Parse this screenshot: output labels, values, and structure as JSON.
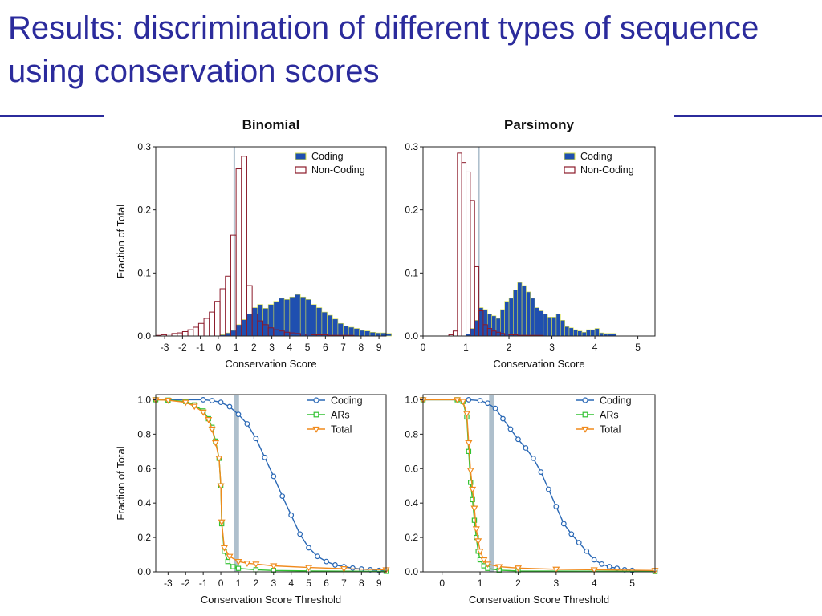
{
  "slide": {
    "title": "Results: discrimination of different types of sequence using conservation scores"
  },
  "colors": {
    "title": "#2b2b9c",
    "coding_fill": "#1f4fb0",
    "coding_edge": "#d8e04a",
    "noncoding_edge": "#8b1a2a",
    "cum_coding": "#2a68b5",
    "cum_ars": "#33c233",
    "cum_total": "#f08a1c",
    "threshold_band": "#aebfcc"
  },
  "chart_data": [
    {
      "type": "bar",
      "title": "Binomial",
      "xlabel": "Conservation Score",
      "ylabel": "Fraction of Total",
      "xlim": [
        -3.5,
        9.4
      ],
      "ylim": [
        0,
        0.3
      ],
      "xticks": [
        -3,
        -2,
        -1,
        0,
        1,
        2,
        3,
        4,
        5,
        6,
        7,
        8,
        9
      ],
      "yticks": [
        0,
        0.1,
        0.2,
        0.3
      ],
      "ytick_labels": [
        "0.0",
        "0.1",
        "0.2",
        "0.3"
      ],
      "threshold": 0.9,
      "bin_start": -3.5,
      "bin_width": 0.3,
      "legend": {
        "position": "top-right",
        "entries": [
          "Coding",
          "Non-Coding"
        ]
      },
      "series": [
        {
          "name": "Coding",
          "style": "filled",
          "values": [
            0,
            0,
            0,
            0,
            0,
            0,
            0,
            0,
            0,
            0,
            0,
            0,
            0.002,
            0.005,
            0.009,
            0.018,
            0.026,
            0.035,
            0.045,
            0.05,
            0.044,
            0.05,
            0.055,
            0.06,
            0.058,
            0.062,
            0.066,
            0.062,
            0.058,
            0.05,
            0.045,
            0.038,
            0.033,
            0.027,
            0.02,
            0.016,
            0.014,
            0.012,
            0.009,
            0.008,
            0.006,
            0.005,
            0.005,
            0.004
          ]
        },
        {
          "name": "Non-Coding",
          "style": "outline",
          "values": [
            0.001,
            0.002,
            0.003,
            0.004,
            0.005,
            0.007,
            0.01,
            0.014,
            0.02,
            0.028,
            0.038,
            0.055,
            0.075,
            0.095,
            0.16,
            0.265,
            0.285,
            0.08,
            0.035,
            0.024,
            0.018,
            0.013,
            0.01,
            0.008,
            0.006,
            0.005,
            0.004,
            0.003,
            0.003,
            0.002,
            0.002,
            0.002,
            0.001,
            0.001,
            0.001,
            0.001,
            0.001,
            0,
            0,
            0,
            0,
            0,
            0,
            0
          ]
        }
      ]
    },
    {
      "type": "bar",
      "title": "Parsimony",
      "xlabel": "Conservation Score",
      "ylabel": "",
      "xlim": [
        0,
        5.4
      ],
      "ylim": [
        0,
        0.3
      ],
      "xticks": [
        0,
        1,
        2,
        3,
        4,
        5
      ],
      "yticks": [
        0,
        0.1,
        0.2,
        0.3
      ],
      "ytick_labels": [
        "0.0",
        "0.1",
        "0.2",
        "0.3"
      ],
      "threshold": 1.3,
      "bin_start": 0.6,
      "bin_width": 0.1,
      "legend": {
        "position": "top-right",
        "entries": [
          "Coding",
          "Non-Coding"
        ]
      },
      "series": [
        {
          "name": "Coding",
          "style": "filled",
          "values": [
            0,
            0,
            0,
            0,
            0.003,
            0.012,
            0.025,
            0.045,
            0.042,
            0.035,
            0.032,
            0.028,
            0.042,
            0.055,
            0.06,
            0.073,
            0.085,
            0.08,
            0.07,
            0.06,
            0.045,
            0.04,
            0.035,
            0.03,
            0.03,
            0.035,
            0.025,
            0.015,
            0.013,
            0.01,
            0.008,
            0.006,
            0.01,
            0.01,
            0.012,
            0.005,
            0.004,
            0.004,
            0.004
          ]
        },
        {
          "name": "Non-Coding",
          "style": "outline",
          "values": [
            0.002,
            0.008,
            0.29,
            0.275,
            0.26,
            0.215,
            0.11,
            0.04,
            0.018,
            0.012,
            0.008,
            0.006,
            0.004,
            0.003,
            0.002,
            0.002,
            0.001,
            0.001,
            0.001,
            0.001,
            0.001,
            0.001,
            0,
            0,
            0,
            0,
            0,
            0,
            0,
            0,
            0,
            0,
            0,
            0,
            0,
            0,
            0,
            0,
            0
          ]
        }
      ]
    },
    {
      "type": "line",
      "title": "",
      "xlabel": "Conservation Score Threshold",
      "ylabel": "Fraction of Total",
      "xlim": [
        -3.7,
        9.4
      ],
      "ylim": [
        0,
        1.03
      ],
      "xticks": [
        -3,
        -2,
        -1,
        0,
        1,
        2,
        3,
        4,
        5,
        6,
        7,
        8,
        9
      ],
      "yticks": [
        0,
        0.2,
        0.4,
        0.6,
        0.8,
        1.0
      ],
      "ytick_labels": [
        "0.0",
        "0.2",
        "0.4",
        "0.6",
        "0.8",
        "1.0"
      ],
      "threshold": 0.9,
      "legend": {
        "position": "top-right",
        "entries": [
          "Coding",
          "ARs",
          "Total"
        ]
      },
      "series": [
        {
          "name": "Coding",
          "marker": "circle",
          "points": [
            [
              -3.7,
              1.0
            ],
            [
              -1,
              1.0
            ],
            [
              -0.5,
              0.995
            ],
            [
              0,
              0.985
            ],
            [
              0.5,
              0.96
            ],
            [
              1,
              0.915
            ],
            [
              1.5,
              0.86
            ],
            [
              2,
              0.775
            ],
            [
              2.5,
              0.665
            ],
            [
              3,
              0.555
            ],
            [
              3.5,
              0.44
            ],
            [
              4,
              0.33
            ],
            [
              4.5,
              0.22
            ],
            [
              5,
              0.14
            ],
            [
              5.5,
              0.09
            ],
            [
              6,
              0.06
            ],
            [
              6.5,
              0.04
            ],
            [
              7,
              0.03
            ],
            [
              7.5,
              0.022
            ],
            [
              8,
              0.016
            ],
            [
              8.5,
              0.012
            ],
            [
              9,
              0.008
            ],
            [
              9.4,
              0.006
            ]
          ]
        },
        {
          "name": "ARs",
          "marker": "square",
          "points": [
            [
              -3.7,
              1.0
            ],
            [
              -3,
              0.998
            ],
            [
              -2,
              0.99
            ],
            [
              -1.5,
              0.97
            ],
            [
              -1,
              0.935
            ],
            [
              -0.7,
              0.89
            ],
            [
              -0.5,
              0.84
            ],
            [
              -0.3,
              0.76
            ],
            [
              -0.1,
              0.66
            ],
            [
              0,
              0.5
            ],
            [
              0.05,
              0.28
            ],
            [
              0.2,
              0.12
            ],
            [
              0.4,
              0.06
            ],
            [
              0.7,
              0.03
            ],
            [
              1,
              0.02
            ],
            [
              2,
              0.012
            ],
            [
              3,
              0.008
            ],
            [
              5,
              0.005
            ],
            [
              9.4,
              0.003
            ]
          ]
        },
        {
          "name": "Total",
          "marker": "triangle-down",
          "points": [
            [
              -3.7,
              1.0
            ],
            [
              -3,
              0.997
            ],
            [
              -2,
              0.985
            ],
            [
              -1.5,
              0.962
            ],
            [
              -1,
              0.928
            ],
            [
              -0.7,
              0.885
            ],
            [
              -0.5,
              0.83
            ],
            [
              -0.3,
              0.75
            ],
            [
              -0.1,
              0.66
            ],
            [
              0,
              0.5
            ],
            [
              0.05,
              0.29
            ],
            [
              0.2,
              0.14
            ],
            [
              0.5,
              0.09
            ],
            [
              1,
              0.06
            ],
            [
              1.5,
              0.05
            ],
            [
              2,
              0.045
            ],
            [
              3,
              0.035
            ],
            [
              5,
              0.025
            ],
            [
              7,
              0.018
            ],
            [
              9.4,
              0.012
            ]
          ]
        }
      ]
    },
    {
      "type": "line",
      "title": "",
      "xlabel": "Conservation Score Threshold",
      "ylabel": "",
      "xlim": [
        -0.5,
        5.6
      ],
      "ylim": [
        0,
        1.03
      ],
      "xticks": [
        0,
        1,
        2,
        3,
        4,
        5
      ],
      "yticks": [
        0,
        0.2,
        0.4,
        0.6,
        0.8,
        1.0
      ],
      "ytick_labels": [
        "0.0",
        "0.2",
        "0.4",
        "0.6",
        "0.8",
        "1.0"
      ],
      "threshold": 1.3,
      "legend": {
        "position": "top-right",
        "entries": [
          "Coding",
          "ARs",
          "Total"
        ]
      },
      "series": [
        {
          "name": "Coding",
          "marker": "circle",
          "points": [
            [
              -0.5,
              1.0
            ],
            [
              0.7,
              1.0
            ],
            [
              1.0,
              0.995
            ],
            [
              1.2,
              0.98
            ],
            [
              1.4,
              0.95
            ],
            [
              1.6,
              0.89
            ],
            [
              1.8,
              0.83
            ],
            [
              2.0,
              0.77
            ],
            [
              2.2,
              0.72
            ],
            [
              2.4,
              0.66
            ],
            [
              2.6,
              0.58
            ],
            [
              2.8,
              0.48
            ],
            [
              3.0,
              0.38
            ],
            [
              3.2,
              0.28
            ],
            [
              3.4,
              0.22
            ],
            [
              3.6,
              0.17
            ],
            [
              3.8,
              0.12
            ],
            [
              4.0,
              0.07
            ],
            [
              4.2,
              0.045
            ],
            [
              4.4,
              0.03
            ],
            [
              4.6,
              0.02
            ],
            [
              4.8,
              0.012
            ],
            [
              5.0,
              0.008
            ],
            [
              5.6,
              0.004
            ]
          ]
        },
        {
          "name": "ARs",
          "marker": "square",
          "points": [
            [
              -0.5,
              1.0
            ],
            [
              0.4,
              1.0
            ],
            [
              0.55,
              0.99
            ],
            [
              0.65,
              0.9
            ],
            [
              0.7,
              0.7
            ],
            [
              0.75,
              0.52
            ],
            [
              0.8,
              0.42
            ],
            [
              0.85,
              0.3
            ],
            [
              0.9,
              0.2
            ],
            [
              0.95,
              0.12
            ],
            [
              1.0,
              0.07
            ],
            [
              1.1,
              0.035
            ],
            [
              1.2,
              0.02
            ],
            [
              1.5,
              0.01
            ],
            [
              2,
              0.005
            ],
            [
              5.6,
              0.002
            ]
          ]
        },
        {
          "name": "Total",
          "marker": "triangle-down",
          "points": [
            [
              -0.5,
              1.0
            ],
            [
              0.4,
              1.0
            ],
            [
              0.55,
              0.99
            ],
            [
              0.65,
              0.92
            ],
            [
              0.7,
              0.75
            ],
            [
              0.75,
              0.59
            ],
            [
              0.8,
              0.48
            ],
            [
              0.85,
              0.37
            ],
            [
              0.9,
              0.25
            ],
            [
              0.95,
              0.18
            ],
            [
              1.0,
              0.12
            ],
            [
              1.1,
              0.07
            ],
            [
              1.2,
              0.045
            ],
            [
              1.5,
              0.03
            ],
            [
              2,
              0.022
            ],
            [
              3,
              0.015
            ],
            [
              4,
              0.012
            ],
            [
              5.6,
              0.008
            ]
          ]
        }
      ]
    }
  ]
}
